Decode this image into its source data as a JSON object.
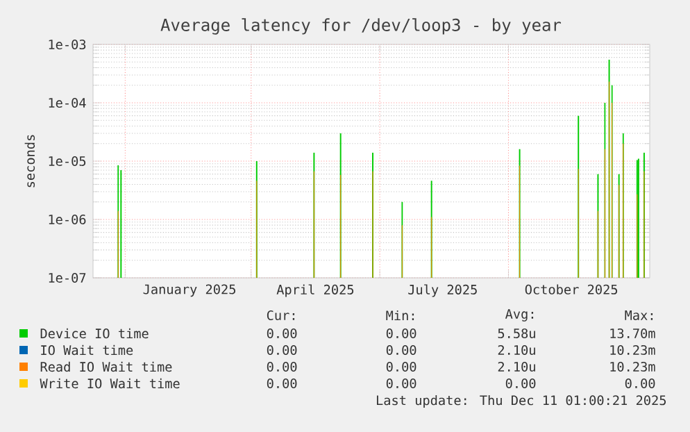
{
  "chart_data": {
    "type": "bar",
    "title": "Average latency for /dev/loop3 - by year",
    "ylabel": "seconds",
    "x": [
      "2024-11-26",
      "2024-11-28",
      "2025-03-05",
      "2025-04-15",
      "2025-05-04",
      "2025-05-27",
      "2025-06-17",
      "2025-07-08",
      "2025-09-09",
      "2025-10-21",
      "2025-11-04",
      "2025-11-09",
      "2025-11-12",
      "2025-11-14",
      "2025-11-19",
      "2025-11-22",
      "2025-12-02",
      "2025-12-03",
      "2025-12-07"
    ],
    "series": [
      {
        "name": "Device IO time",
        "color": "#00cc00",
        "values": [
          8.5e-06,
          7e-06,
          1e-05,
          1.4e-05,
          3e-05,
          1.4e-05,
          2e-06,
          4.6e-06,
          1.6e-05,
          6e-05,
          6e-06,
          0.0001,
          0.00055,
          0.0002,
          6e-06,
          3e-05,
          1.05e-05,
          1.1e-05,
          1.4e-05
        ]
      },
      {
        "name": "IO Wait time",
        "color": "#0066b3",
        "values": [
          null,
          null,
          null,
          null,
          null,
          null,
          null,
          null,
          null,
          null,
          null,
          null,
          null,
          null,
          null,
          null,
          null,
          null,
          null
        ]
      },
      {
        "name": "Read IO Wait time",
        "color": "#ff8000",
        "values": [
          1.4e-06,
          null,
          4.6e-06,
          6.7e-06,
          5.8e-06,
          6.7e-06,
          8e-07,
          1.1e-06,
          8.4e-06,
          7.4e-06,
          1.4e-06,
          1.6e-05,
          0.00023,
          0.0001,
          3.9e-06,
          2e-05,
          2.7e-06,
          null,
          6.7e-06
        ]
      },
      {
        "name": "Write IO Wait time",
        "color": "#ffcc00",
        "values": [
          null,
          null,
          null,
          null,
          null,
          null,
          null,
          null,
          null,
          null,
          null,
          null,
          null,
          null,
          null,
          null,
          null,
          null,
          null
        ]
      }
    ],
    "xlim": [
      "2024-11-08",
      "2025-12-11"
    ],
    "xticks": [
      {
        "value": "2024-12-01",
        "label": null
      },
      {
        "value": "2025-01-16",
        "label": "January 2025"
      },
      {
        "value": "2025-03-01",
        "label": null
      },
      {
        "value": "2025-04-16",
        "label": "April 2025"
      },
      {
        "value": "2025-06-01",
        "label": null
      },
      {
        "value": "2025-07-16",
        "label": "July 2025"
      },
      {
        "value": "2025-09-01",
        "label": null
      },
      {
        "value": "2025-10-16",
        "label": "October 2025"
      }
    ],
    "ylim": [
      1e-07,
      0.001
    ],
    "yticks": [
      {
        "value": 1e-07,
        "label": "1e-07"
      },
      {
        "value": 1e-06,
        "label": "1e-06"
      },
      {
        "value": 1e-05,
        "label": "1e-05"
      },
      {
        "value": 0.0001,
        "label": "1e-04"
      },
      {
        "value": 0.001,
        "label": "1e-03"
      }
    ],
    "log": "y",
    "grid": true,
    "legend": "bottom",
    "annotations": [
      "Cur:",
      "Min:",
      "Avg:",
      "Max:",
      "0.00",
      "0.00",
      "5.58u",
      "13.70m",
      "0.00",
      "0.00",
      "2.10u",
      "10.23m",
      "0.00",
      "0.00",
      "2.10u",
      "10.23m",
      "0.00",
      "0.00",
      "0.00",
      "0.00",
      "Last update: Thu Dec 11 01:00:21 2025"
    ]
  }
}
